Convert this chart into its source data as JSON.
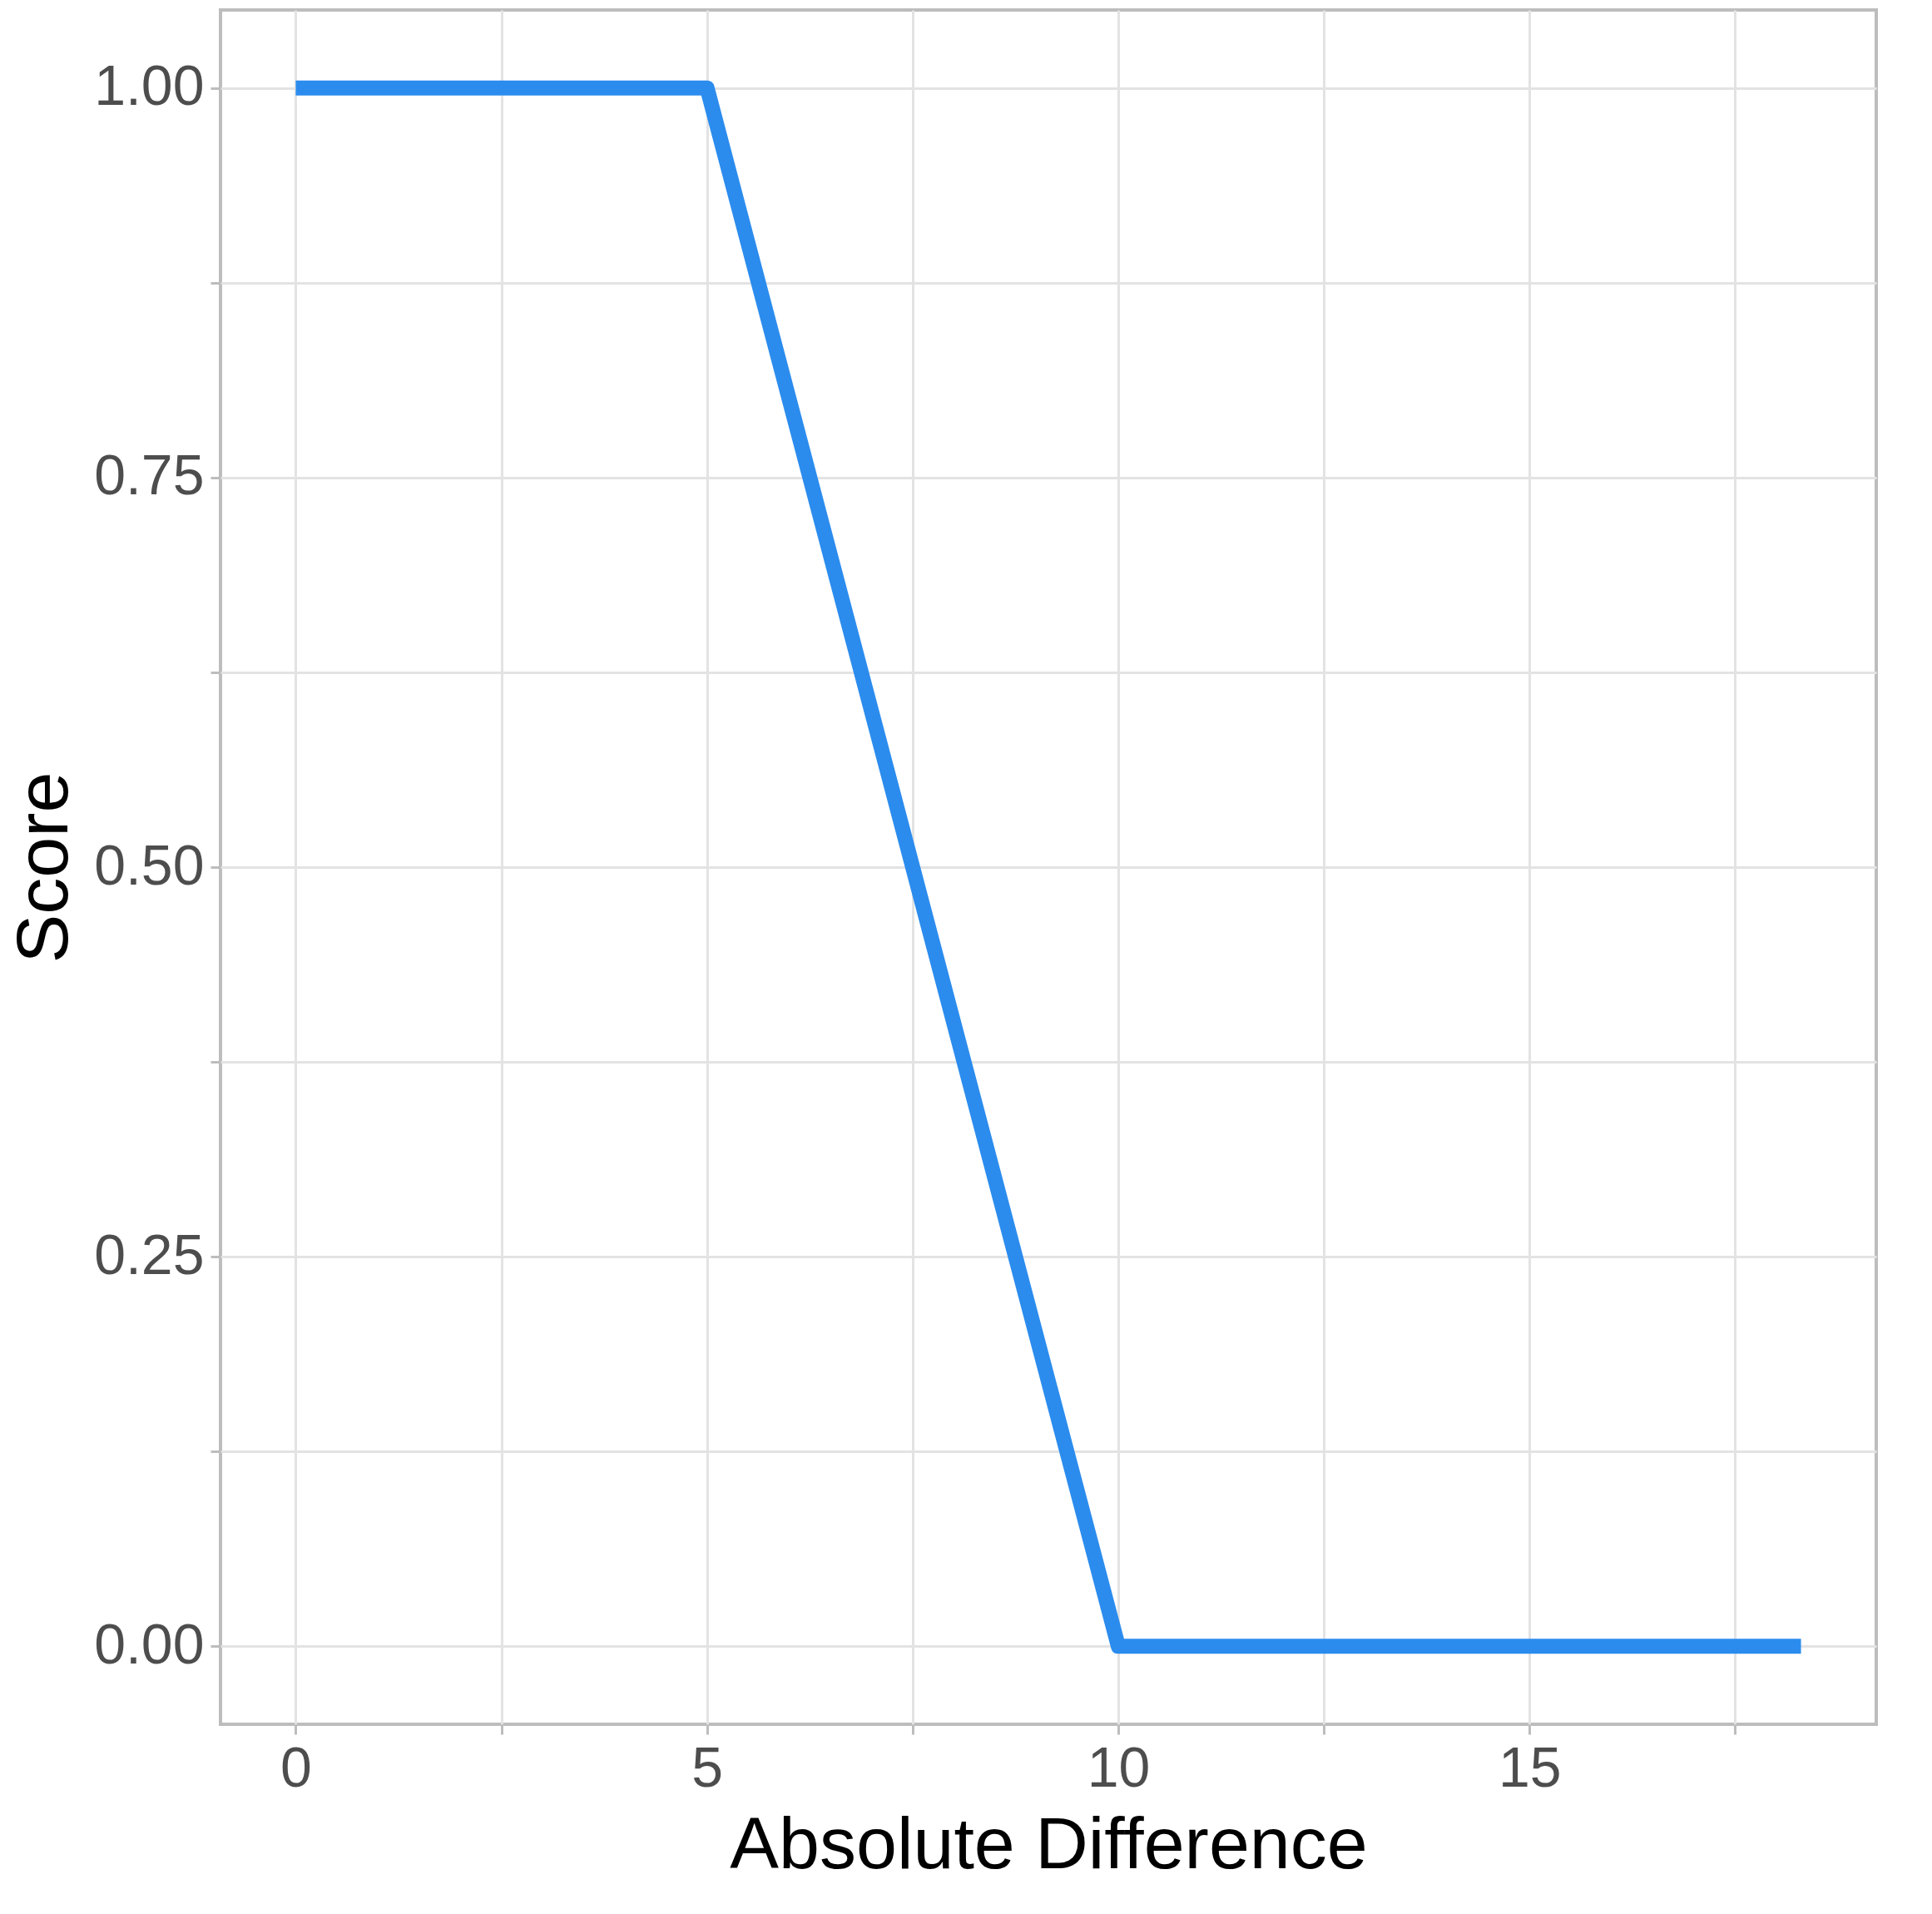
{
  "chart_data": {
    "type": "line",
    "xlabel": "Absolute Difference",
    "ylabel": "Score",
    "x": [
      0,
      5,
      10,
      18.3
    ],
    "series": [
      {
        "color": "#2b8cee",
        "values": [
          1,
          1,
          0,
          0
        ]
      }
    ],
    "xlim": [
      -0.915,
      19.215
    ],
    "xticks": [
      0,
      {
        "value": 2.5,
        "label": null
      },
      5,
      {
        "value": 7.5,
        "label": null
      },
      10,
      {
        "value": 12.5,
        "label": null
      },
      15,
      {
        "value": 17.5,
        "label": null
      }
    ],
    "ylim": [
      -0.05,
      1.05
    ],
    "yticks": [
      "0.00",
      {
        "value": 0.125,
        "label": null
      },
      {
        "value": 0.25,
        "label": "0.25"
      },
      {
        "value": 0.375,
        "label": null
      },
      {
        "value": 0.5,
        "label": "0.50"
      },
      {
        "value": 0.625,
        "label": null
      },
      {
        "value": 0.75,
        "label": "0.75"
      },
      {
        "value": 0.875,
        "label": null
      },
      {
        "value": 1,
        "label": "1.00"
      }
    ],
    "grid": true,
    "marker": "none",
    "line_style": "solid"
  }
}
